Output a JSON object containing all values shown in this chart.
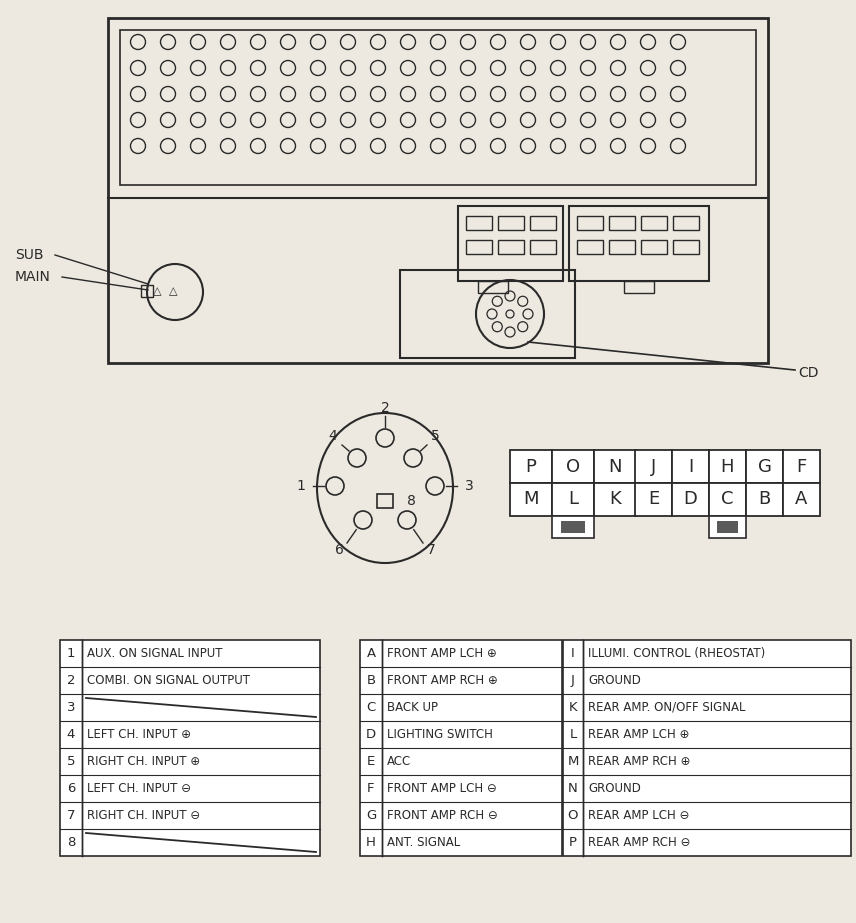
{
  "bg_color": "#ede9e0",
  "line_color": "#2a2a2a",
  "table1": {
    "rows": [
      [
        "1",
        "AUX. ON SIGNAL INPUT"
      ],
      [
        "2",
        "COMBI. ON SIGNAL OUTPUT"
      ],
      [
        "3",
        ""
      ],
      [
        "4",
        "LEFT CH. INPUT ⊕"
      ],
      [
        "5",
        "RIGHT CH. INPUT ⊕"
      ],
      [
        "6",
        "LEFT CH. INPUT ⊖"
      ],
      [
        "7",
        "RIGHT CH. INPUT ⊖"
      ],
      [
        "8",
        ""
      ]
    ]
  },
  "table2": {
    "rows": [
      [
        "A",
        "FRONT AMP LCH ⊕"
      ],
      [
        "B",
        "FRONT AMP RCH ⊕"
      ],
      [
        "C",
        "BACK UP"
      ],
      [
        "D",
        "LIGHTING SWITCH"
      ],
      [
        "E",
        "ACC"
      ],
      [
        "F",
        "FRONT AMP LCH ⊖"
      ],
      [
        "G",
        "FRONT AMP RCH ⊖"
      ],
      [
        "H",
        "ANT. SIGNAL"
      ]
    ]
  },
  "table3": {
    "rows": [
      [
        "I",
        "ILLUMI. CONTROL (RHEOSTAT)"
      ],
      [
        "J",
        "GROUND"
      ],
      [
        "K",
        "REAR AMP. ON/OFF SIGNAL"
      ],
      [
        "L",
        "REAR AMP LCH ⊕"
      ],
      [
        "M",
        "REAR AMP RCH ⊕"
      ],
      [
        "N",
        "GROUND"
      ],
      [
        "O",
        "REAR AMP LCH ⊖"
      ],
      [
        "P",
        "REAR AMP RCH ⊖"
      ]
    ]
  },
  "connector_grid1": [
    [
      "P",
      "O",
      "N"
    ],
    [
      "M",
      "L",
      "K"
    ]
  ],
  "connector_grid2": [
    [
      "J",
      "I",
      "H",
      "G",
      "F"
    ],
    [
      "E",
      "D",
      "C",
      "B",
      "A"
    ]
  ]
}
